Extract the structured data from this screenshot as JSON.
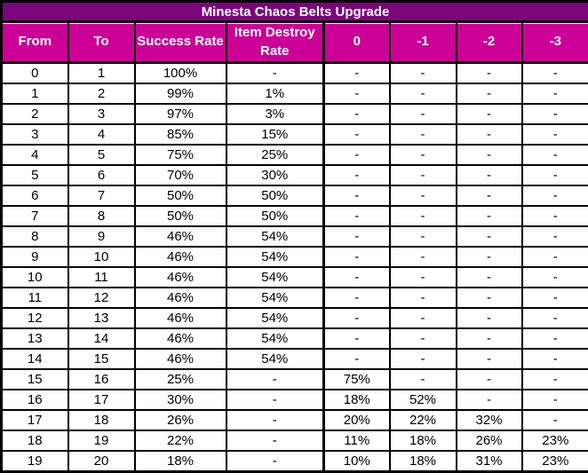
{
  "title": "Minesta Chaos Belts Upgrade",
  "colors": {
    "title_bg": "#7B057B",
    "header_bg": "#CC0096",
    "header_text": "#FFFFFF",
    "border": "#000000",
    "text": "#000000",
    "row_bg": "#FFFFFF"
  },
  "chart_data": {
    "type": "table",
    "title": "Minesta Chaos Belts Upgrade",
    "columns": [
      "From",
      "To",
      "Success Rate",
      "Item Destroy Rate",
      "0",
      "-1",
      "-2",
      "-3"
    ],
    "thick_divider_before_column_index": 4,
    "rows": [
      [
        "0",
        "1",
        "100%",
        "-",
        "-",
        "-",
        "-",
        "-"
      ],
      [
        "1",
        "2",
        "99%",
        "1%",
        "-",
        "-",
        "-",
        "-"
      ],
      [
        "2",
        "3",
        "97%",
        "3%",
        "-",
        "-",
        "-",
        "-"
      ],
      [
        "3",
        "4",
        "85%",
        "15%",
        "-",
        "-",
        "-",
        "-"
      ],
      [
        "4",
        "5",
        "75%",
        "25%",
        "-",
        "-",
        "-",
        "-"
      ],
      [
        "5",
        "6",
        "70%",
        "30%",
        "-",
        "-",
        "-",
        "-"
      ],
      [
        "6",
        "7",
        "50%",
        "50%",
        "-",
        "-",
        "-",
        "-"
      ],
      [
        "7",
        "8",
        "50%",
        "50%",
        "-",
        "-",
        "-",
        "-"
      ],
      [
        "8",
        "9",
        "46%",
        "54%",
        "-",
        "-",
        "-",
        "-"
      ],
      [
        "9",
        "10",
        "46%",
        "54%",
        "-",
        "-",
        "-",
        "-"
      ],
      [
        "10",
        "11",
        "46%",
        "54%",
        "-",
        "-",
        "-",
        "-"
      ],
      [
        "11",
        "12",
        "46%",
        "54%",
        "-",
        "-",
        "-",
        "-"
      ],
      [
        "12",
        "13",
        "46%",
        "54%",
        "-",
        "-",
        "-",
        "-"
      ],
      [
        "13",
        "14",
        "46%",
        "54%",
        "-",
        "-",
        "-",
        "-"
      ],
      [
        "14",
        "15",
        "46%",
        "54%",
        "-",
        "-",
        "-",
        "-"
      ],
      [
        "15",
        "16",
        "25%",
        "-",
        "75%",
        "-",
        "-",
        "-"
      ],
      [
        "16",
        "17",
        "30%",
        "-",
        "18%",
        "52%",
        "-",
        "-"
      ],
      [
        "17",
        "18",
        "26%",
        "-",
        "20%",
        "22%",
        "32%",
        "-"
      ],
      [
        "18",
        "19",
        "22%",
        "-",
        "11%",
        "18%",
        "26%",
        "23%"
      ],
      [
        "19",
        "20",
        "18%",
        "-",
        "10%",
        "18%",
        "31%",
        "23%"
      ]
    ]
  }
}
